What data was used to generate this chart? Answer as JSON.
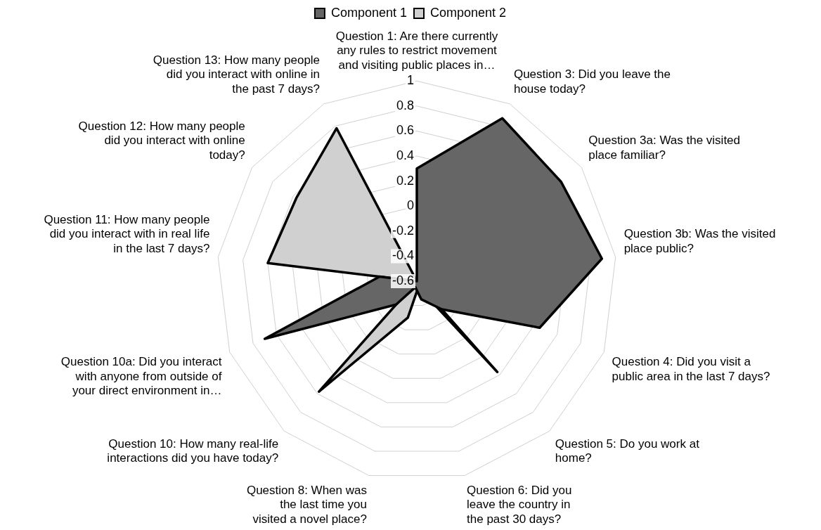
{
  "chart_data": {
    "type": "radar",
    "categories": [
      "Question 1: Are there currently any rules to restrict movement and visiting public places in…",
      "Question 3: Did you leave the house today?",
      "Question 3a: Was the visited place familiar?",
      "Question 3b: Was the visited place public?",
      "Question 4: Did you visit a public area in the last 7 days?",
      "Question 5: Do you work at home?",
      "Question 6: Did you leave the country in the past 30 days?",
      "Question 8: When was the last time you visited a novel place?",
      "Question 10: How many real-life interactions did you have today?",
      "Question 10a: Did you interact with anyone from outside of your direct environment in…",
      "Question 11: How many people did you interact with in real life in the last 7 days?",
      "Question 12: How many people did you interact with online today?",
      "Question 13: How many people did you interact with online in the past 7 days?"
    ],
    "series": [
      {
        "name": "Component 1",
        "color": "#666666",
        "values": [
          0.3,
          0.87,
          0.8,
          0.89,
          0.45,
          -0.3,
          -0.45,
          -0.55,
          -0.35,
          0.7,
          -0.3,
          -0.6,
          -0.6
        ]
      },
      {
        "name": "Component 2",
        "color": "#d0d0d0",
        "values": [
          -0.6,
          -0.6,
          -0.6,
          -0.6,
          -0.6,
          0.37,
          -0.55,
          -0.3,
          0.58,
          -0.6,
          0.6,
          0.57,
          0.78
        ]
      }
    ],
    "ylim": [
      -0.6,
      1
    ],
    "yticks": [
      -0.6,
      -0.4,
      -0.2,
      0,
      0.2,
      0.4,
      0.6,
      0.8,
      1
    ],
    "legend": "top",
    "grid": true,
    "marker": "none"
  }
}
